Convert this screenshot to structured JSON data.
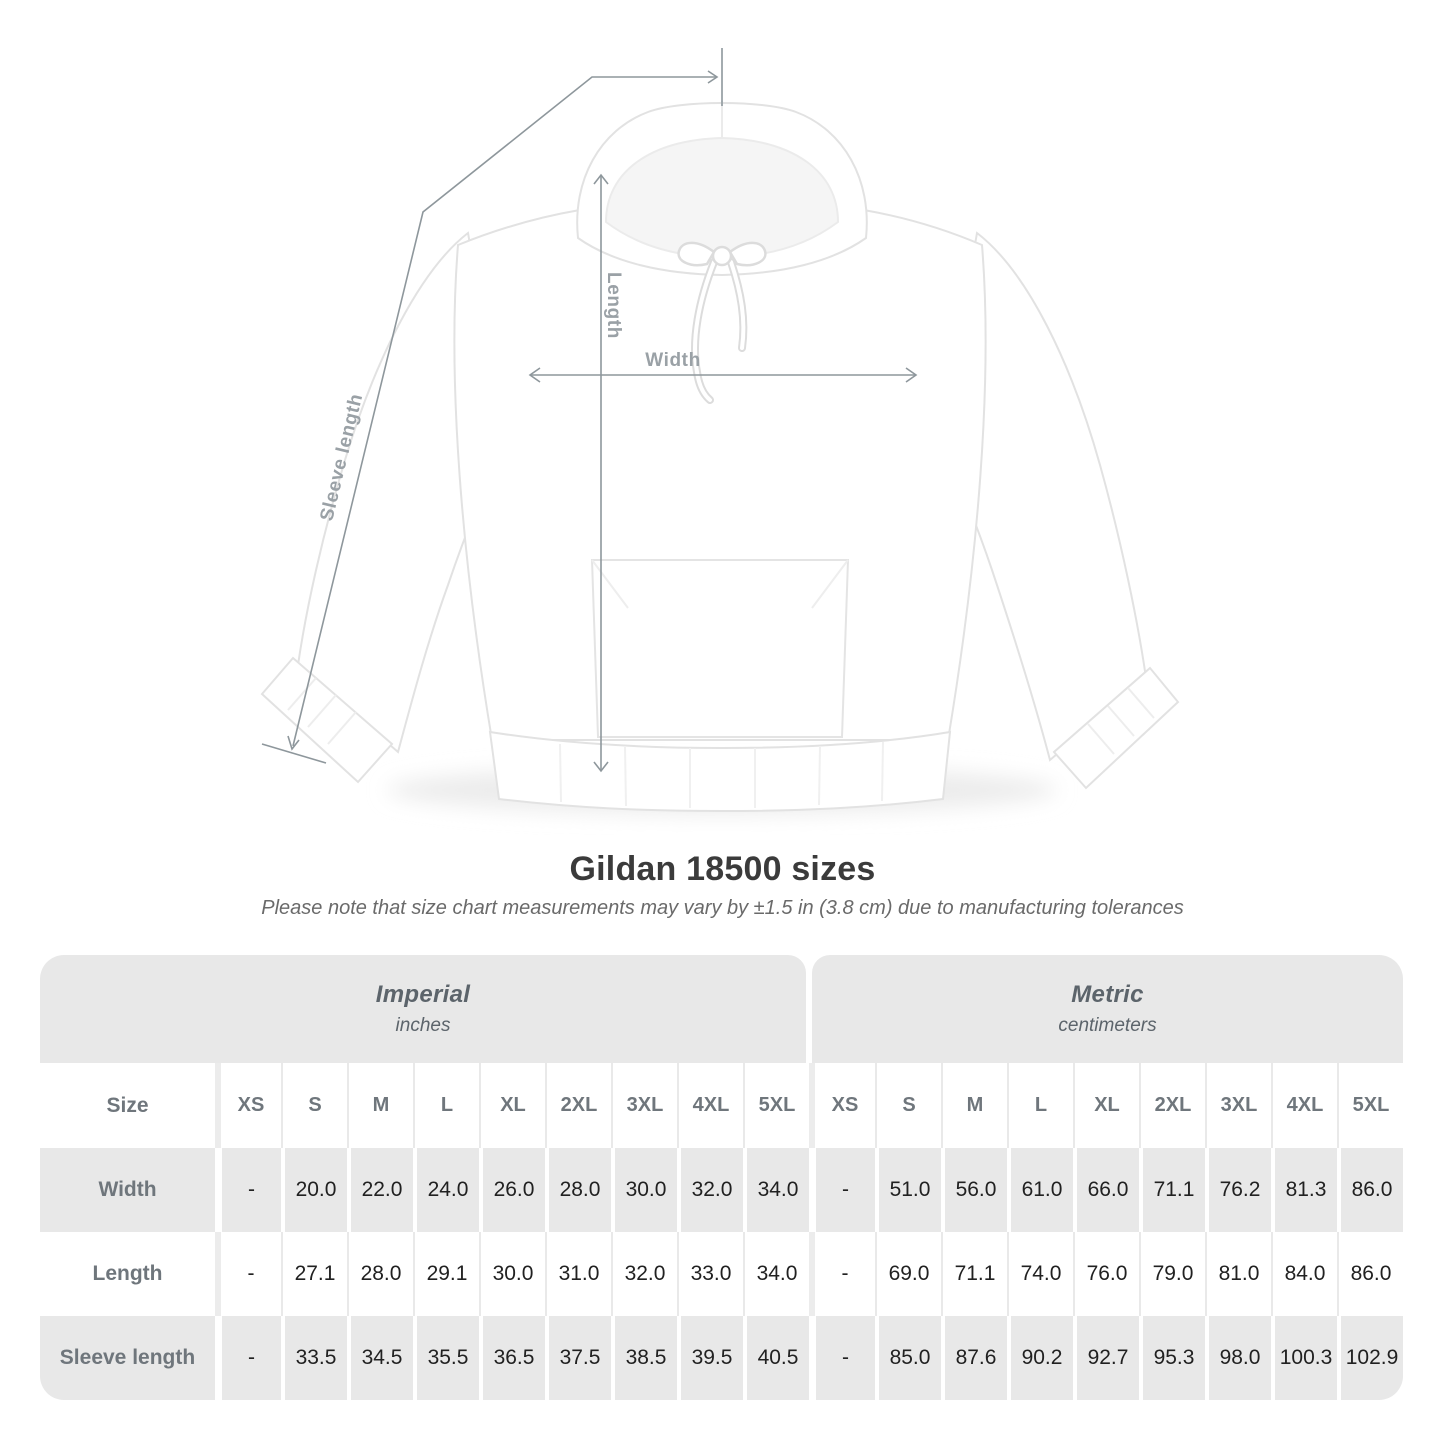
{
  "title": "Gildan 18500 sizes",
  "subtitle": "Please note that size chart measurements may vary by ±1.5 in (3.8 cm) due to manufacturing tolerances",
  "diagram": {
    "labels": {
      "length": "Length",
      "width": "Width",
      "sleeve": "Sleeve length"
    }
  },
  "table": {
    "size_label": "Size",
    "unit_groups": [
      {
        "name": "Imperial",
        "unit": "inches"
      },
      {
        "name": "Metric",
        "unit": "centimeters"
      }
    ],
    "sizes": [
      "XS",
      "S",
      "M",
      "L",
      "XL",
      "2XL",
      "3XL",
      "4XL",
      "5XL"
    ],
    "rows": [
      {
        "label": "Width",
        "imperial": [
          "-",
          "20.0",
          "22.0",
          "24.0",
          "26.0",
          "28.0",
          "30.0",
          "32.0",
          "34.0"
        ],
        "metric": [
          "-",
          "51.0",
          "56.0",
          "61.0",
          "66.0",
          "71.1",
          "76.2",
          "81.3",
          "86.0"
        ]
      },
      {
        "label": "Length",
        "imperial": [
          "-",
          "27.1",
          "28.0",
          "29.1",
          "30.0",
          "31.0",
          "32.0",
          "33.0",
          "34.0"
        ],
        "metric": [
          "-",
          "69.0",
          "71.1",
          "74.0",
          "76.0",
          "79.0",
          "81.0",
          "84.0",
          "86.0"
        ]
      },
      {
        "label": "Sleeve length",
        "imperial": [
          "-",
          "33.5",
          "34.5",
          "35.5",
          "36.5",
          "37.5",
          "38.5",
          "39.5",
          "40.5"
        ],
        "metric": [
          "-",
          "85.0",
          "87.6",
          "90.2",
          "92.7",
          "95.3",
          "98.0",
          "100.3",
          "102.9"
        ]
      }
    ]
  },
  "colors": {
    "table_gray": "#e8e8e8",
    "label_text": "#6f767c",
    "value_text": "#212121",
    "line_gray": "#8e979c",
    "measure_label": "#9aa1a6",
    "title_text": "#3b3b3b",
    "subtitle_text": "#6a6a6a"
  }
}
